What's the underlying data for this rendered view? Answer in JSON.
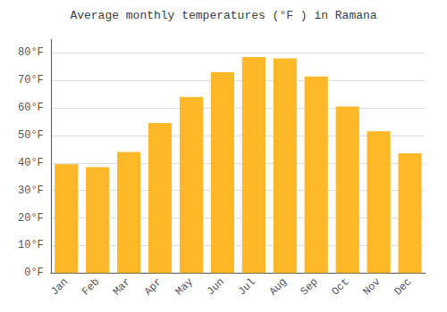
{
  "chart_data": {
    "type": "bar",
    "title": "Average monthly temperatures (°F ) in Ramana",
    "categories": [
      "Jan",
      "Feb",
      "Mar",
      "Apr",
      "May",
      "Jun",
      "Jul",
      "Aug",
      "Sep",
      "Oct",
      "Nov",
      "Dec"
    ],
    "values": [
      39.5,
      38.5,
      44,
      54.5,
      64,
      73,
      78.5,
      78,
      71.5,
      60.5,
      51.5,
      43.5
    ],
    "color": "#FDB827",
    "ylim": [
      0,
      85
    ],
    "yticks": [
      {
        "value": 0,
        "label": "0°F"
      },
      {
        "value": 10,
        "label": "10°F"
      },
      {
        "value": 20,
        "label": "20°F"
      },
      {
        "value": 30,
        "label": "30°F"
      },
      {
        "value": 40,
        "label": "40°F"
      },
      {
        "value": 50,
        "label": "50°F"
      },
      {
        "value": 60,
        "label": "60°F"
      },
      {
        "value": 70,
        "label": "70°F"
      },
      {
        "value": 80,
        "label": "80°F"
      }
    ],
    "grid": true
  }
}
